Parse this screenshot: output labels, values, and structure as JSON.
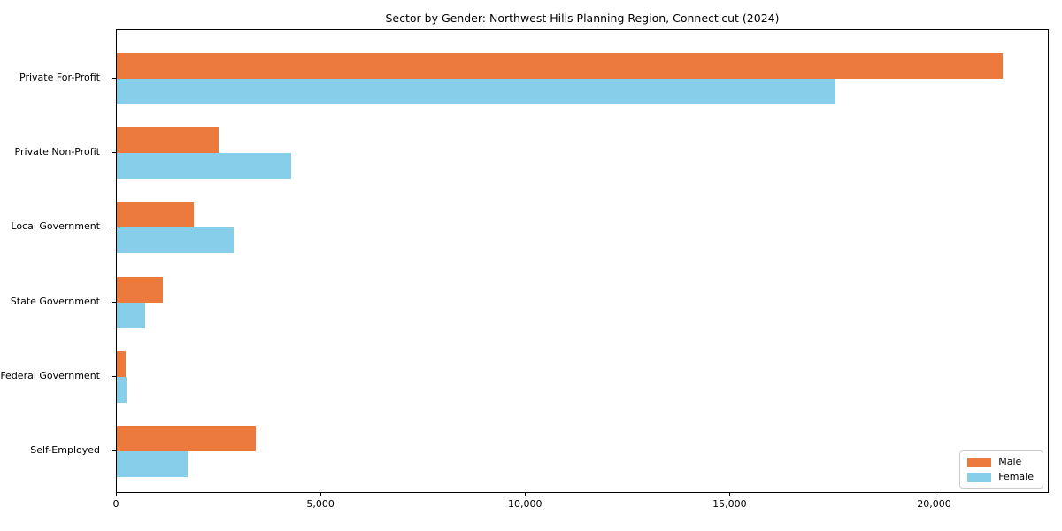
{
  "title": "Sector by Gender: Northwest Hills Planning Region, Connecticut (2024)",
  "chart_data": {
    "type": "bar",
    "orientation": "horizontal",
    "title": "Sector by Gender: Northwest Hills Planning Region, Connecticut (2024)",
    "categories": [
      "Private For-Profit",
      "Private Non-Profit",
      "Local Government",
      "State Government",
      "Federal Government",
      "Self-Employed"
    ],
    "series": [
      {
        "name": "Male",
        "color": "#EC7A3C",
        "values": [
          21700,
          2500,
          1880,
          1120,
          220,
          3400
        ]
      },
      {
        "name": "Female",
        "color": "#87CEEB",
        "values": [
          17600,
          4280,
          2850,
          700,
          230,
          1730
        ]
      }
    ],
    "xlabel": "",
    "ylabel": "",
    "xlim": [
      0,
      22800
    ],
    "xticks": [
      0,
      5000,
      10000,
      15000,
      20000
    ],
    "xtick_labels": [
      "0",
      "5,000",
      "10,000",
      "15,000",
      "20,000"
    ],
    "legend_position": "lower right",
    "grid": false,
    "background_color": "#ffffff",
    "spine_color": "#000000"
  }
}
